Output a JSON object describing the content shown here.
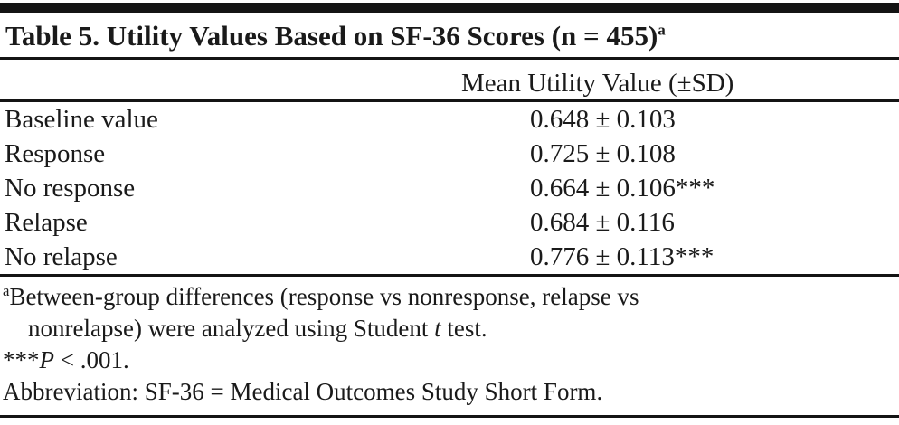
{
  "table": {
    "title": "Table 5. Utility Values Based on SF-36 Scores (n = 455)",
    "title_superscript": "a",
    "column_header": "Mean Utility Value (±SD)",
    "rows": [
      {
        "label": "Baseline value",
        "value": "0.648 ± 0.103",
        "stars": ""
      },
      {
        "label": "Response",
        "value": "0.725 ± 0.108",
        "stars": ""
      },
      {
        "label": "No response",
        "value": "0.664 ± 0.106",
        "stars": "***"
      },
      {
        "label": "Relapse",
        "value": "0.684 ± 0.116",
        "stars": ""
      },
      {
        "label": "No relapse",
        "value": "0.776 ± 0.113",
        "stars": "***"
      }
    ]
  },
  "footnotes": [
    {
      "segments": [
        {
          "text": "a",
          "style": "sup"
        },
        {
          "text": "Between-group differences (response vs nonresponse, relapse vs",
          "style": "normal"
        },
        {
          "style": "br"
        },
        {
          "text": "nonrelapse) were analyzed using Student ",
          "style": "normal"
        },
        {
          "text": "t",
          "style": "italic"
        },
        {
          "text": " test.",
          "style": "normal"
        }
      ]
    },
    {
      "segments": [
        {
          "text": "***",
          "style": "normal"
        },
        {
          "text": "P",
          "style": "italic"
        },
        {
          "text": " < .001.",
          "style": "normal"
        }
      ]
    },
    {
      "segments": [
        {
          "text": "Abbreviation: SF-36 = Medical Outcomes Study Short Form.",
          "style": "normal"
        }
      ]
    }
  ],
  "colors": {
    "text": "#1a1a1a",
    "rule": "#141414",
    "background": "#ffffff"
  }
}
